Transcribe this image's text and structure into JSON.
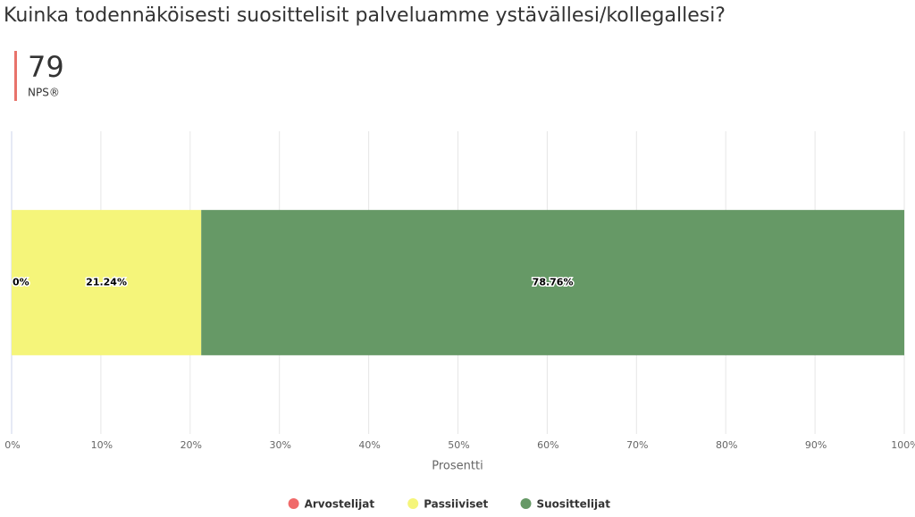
{
  "chart_data": {
    "type": "stacked-bar-horizontal",
    "title": "Kuinka todennäköisesti suosittelisit palveluamme ystävällesi/kollegallesi?",
    "nps": {
      "value": 79,
      "label": "NPS®"
    },
    "categories": [
      null
    ],
    "series": [
      {
        "name": "Arvostelijat",
        "color": "#f06a6a",
        "values": [
          0
        ],
        "value_labels": [
          "0%"
        ]
      },
      {
        "name": "Passiiviset",
        "color": "#f5f57a",
        "values": [
          21.24
        ],
        "value_labels": [
          "21.24%"
        ]
      },
      {
        "name": "Suosittelijat",
        "color": "#669966",
        "values": [
          78.76
        ],
        "value_labels": [
          "78.76%"
        ]
      }
    ],
    "xlabel": "Prosentti",
    "xlim": [
      0,
      100
    ],
    "xticks": [
      {
        "value": 0,
        "label": "0%"
      },
      {
        "value": 10,
        "label": "10%"
      },
      {
        "value": 20,
        "label": "20%"
      },
      {
        "value": 30,
        "label": "30%"
      },
      {
        "value": 40,
        "label": "40%"
      },
      {
        "value": 50,
        "label": "50%"
      },
      {
        "value": 60,
        "label": "60%"
      },
      {
        "value": 70,
        "label": "70%"
      },
      {
        "value": 80,
        "label": "80%"
      },
      {
        "value": 90,
        "label": "90%"
      },
      {
        "value": 100,
        "label": "100%"
      }
    ],
    "grid": true,
    "legend": "bottom"
  }
}
